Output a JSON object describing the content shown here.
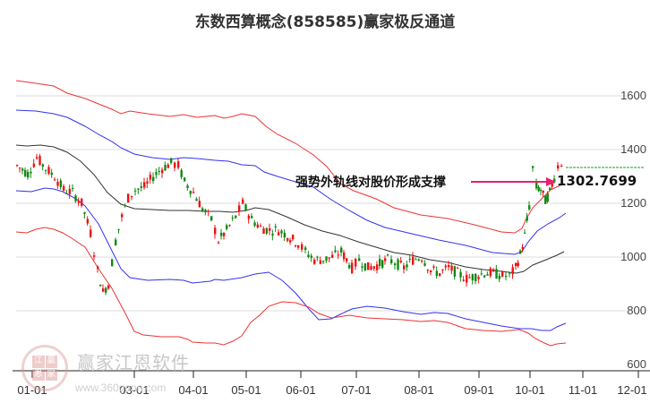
{
  "title": "东数西算概念(858585)赢家极反通道",
  "annotation": {
    "text": "强势外轨线对股价形成支撑",
    "value": "1302.7699",
    "arrow_color": "#e8206e"
  },
  "watermark": {
    "name": "赢家江恩软件",
    "url": "www.360gann.com",
    "logo_chars": [
      "江",
      "赢",
      "恩",
      "家"
    ]
  },
  "colors": {
    "up": "#ee1111",
    "down": "#118811",
    "outer_band": "#ee3333",
    "inner_band": "#3333ee",
    "mid_line": "#222222",
    "ref_line": "#11aa11",
    "grid": "#dddddd"
  },
  "chart_data": {
    "type": "candlestick",
    "title": "东数西算概念(858585)赢家极反通道",
    "xlabel": "",
    "ylabel": "",
    "ylim": [
      600,
      1700
    ],
    "y_ticks": [
      600,
      800,
      1000,
      1200,
      1400,
      1600
    ],
    "x_ticks": [
      "01-01",
      "03-01",
      "04-01",
      "05-01",
      "06-01",
      "07-01",
      "08-01",
      "09-01",
      "10-01",
      "11-01",
      "12-01"
    ],
    "grid": "horizontal",
    "series": [
      {
        "name": "outer_upper_band (red)",
        "color": "#ee3333",
        "x": [
          "01-01",
          "02-01",
          "03-01",
          "04-01",
          "05-01",
          "06-01",
          "07-01",
          "08-01",
          "09-01",
          "10-01"
        ],
        "values": [
          1660,
          1610,
          1560,
          1560,
          1550,
          1470,
          1320,
          1210,
          1180,
          1200
        ]
      },
      {
        "name": "inner_upper_band (blue)",
        "color": "#3333ee",
        "x": [
          "01-01",
          "02-01",
          "03-01",
          "04-01",
          "05-01",
          "06-01",
          "07-01",
          "08-01",
          "09-01",
          "10-01",
          "10-20"
        ],
        "values": [
          1580,
          1520,
          1470,
          1460,
          1450,
          1360,
          1200,
          1110,
          1050,
          1060,
          1170
        ]
      },
      {
        "name": "middle_line (black)",
        "color": "#222222",
        "x": [
          "01-01",
          "02-01",
          "03-01",
          "04-01",
          "05-01",
          "06-01",
          "07-01",
          "08-01",
          "09-01",
          "10-01",
          "10-20"
        ],
        "values": [
          1430,
          1420,
          1270,
          1200,
          1200,
          1160,
          1040,
          970,
          950,
          960,
          1030
        ]
      },
      {
        "name": "inner_lower_band (blue)",
        "color": "#3333ee",
        "x": [
          "01-01",
          "02-01",
          "03-01",
          "04-01",
          "05-01",
          "06-01",
          "07-01",
          "08-01",
          "09-01",
          "10-01",
          "10-20"
        ],
        "values": [
          1100,
          1090,
          940,
          840,
          810,
          930,
          900,
          870,
          850,
          840,
          850
        ]
      },
      {
        "name": "outer_lower_band (red)",
        "color": "#ee3333",
        "x": [
          "01-01",
          "02-01",
          "03-01",
          "04-01",
          "05-01",
          "06-01",
          "07-01",
          "08-01",
          "09-01",
          "10-01",
          "10-20"
        ],
        "values": [
          920,
          910,
          730,
          700,
          680,
          790,
          800,
          760,
          740,
          730,
          680
        ]
      },
      {
        "name": "price_close (candles)",
        "x": [
          "01-01",
          "01-15",
          "02-01",
          "02-15",
          "03-01",
          "03-15",
          "04-01",
          "04-15",
          "05-01",
          "05-15",
          "06-01",
          "06-15",
          "07-01",
          "07-15",
          "08-01",
          "08-15",
          "09-01",
          "09-15",
          "10-01",
          "10-10",
          "10-20"
        ],
        "values": [
          1340,
          1260,
          1190,
          880,
          1200,
          1300,
          1370,
          1180,
          1080,
          1100,
          1060,
          1000,
          960,
          980,
          980,
          950,
          930,
          930,
          1170,
          1300,
          1340
        ]
      }
    ],
    "annotations": [
      {
        "text": "强势外轨线对股价形成支撑",
        "value": 1302.7699,
        "type": "arrow"
      }
    ],
    "reference_line": {
      "value": 1348,
      "style": "dashed",
      "color": "#11aa11"
    }
  }
}
